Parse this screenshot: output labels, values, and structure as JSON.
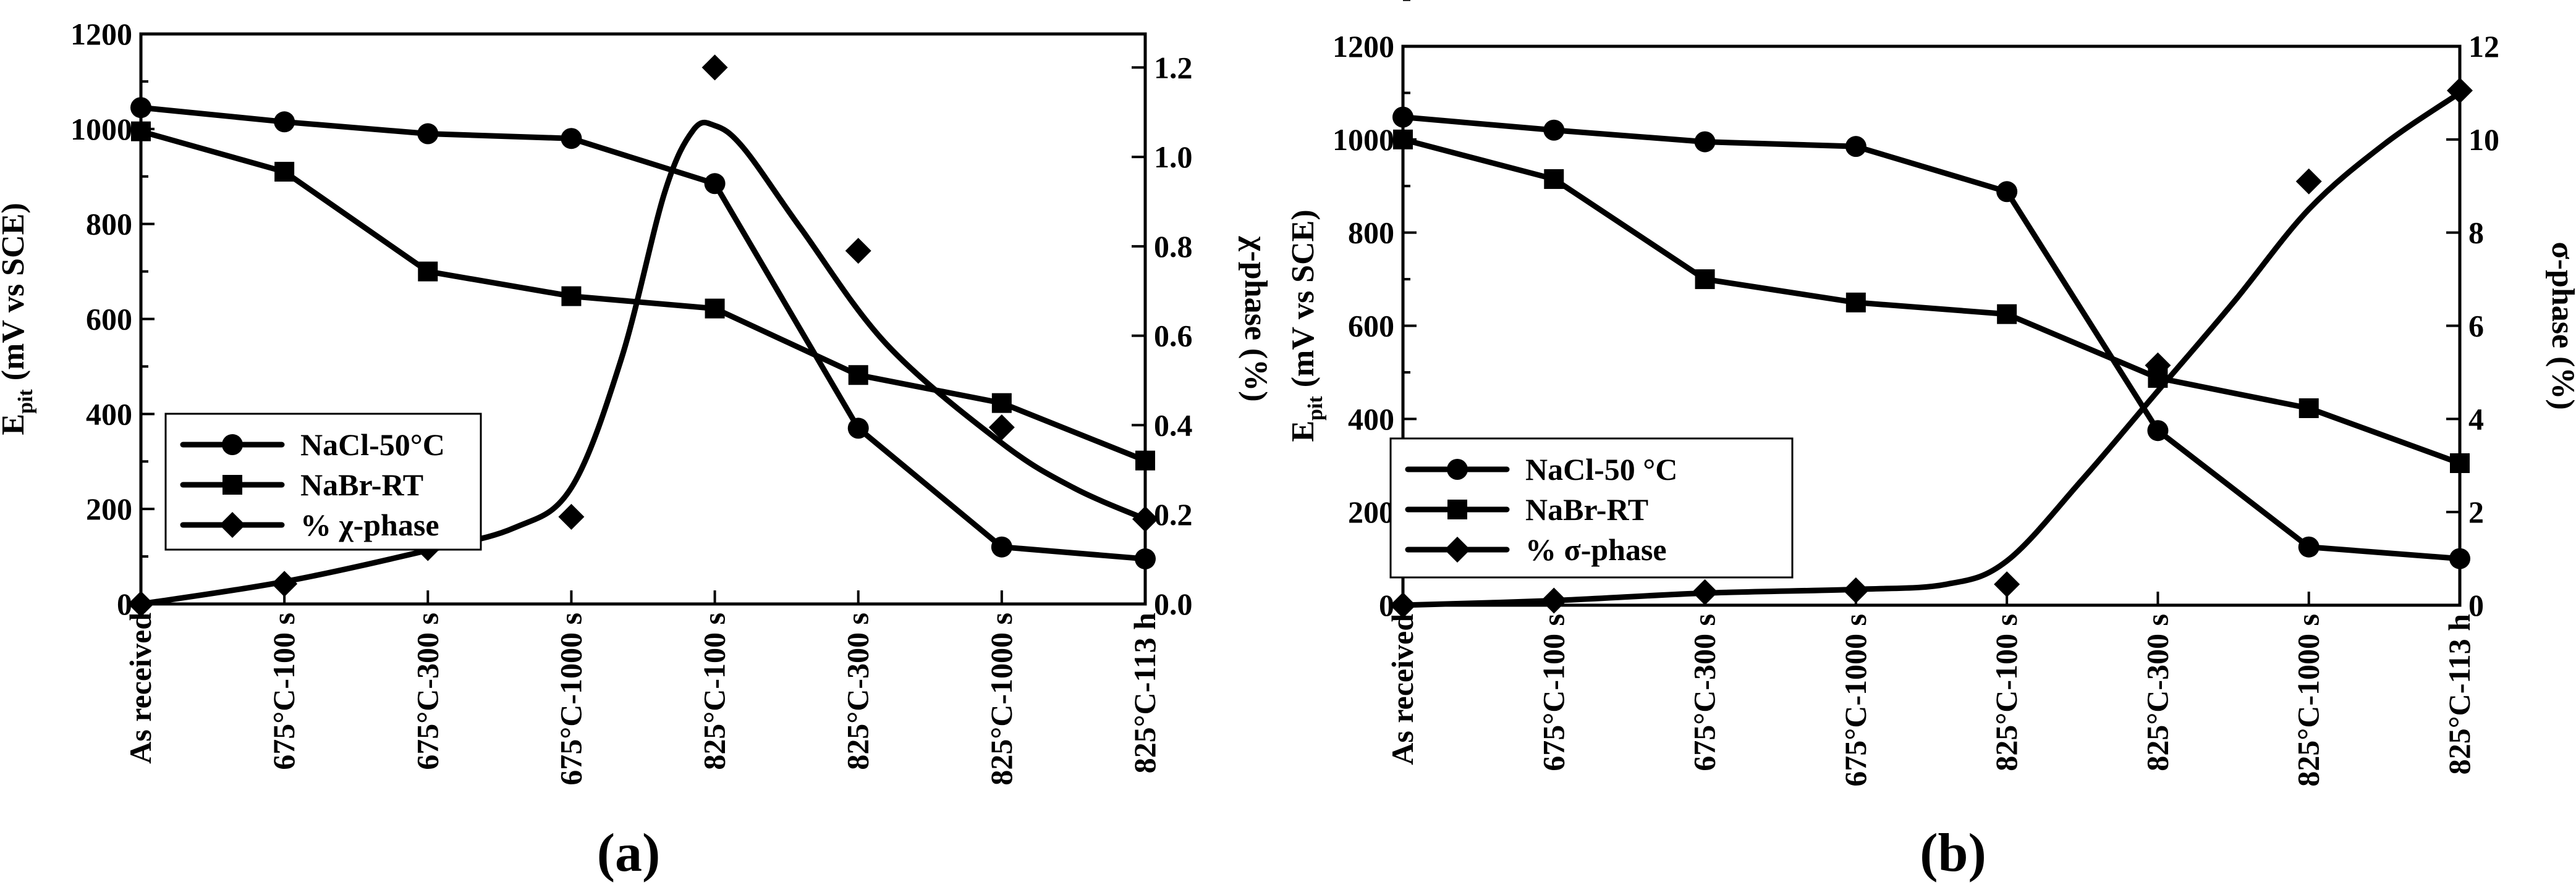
{
  "chart_data": [
    {
      "panel_label": "(a)",
      "type": "line",
      "categories": [
        "As received",
        "675°C-100 s",
        "675°C-300 s",
        "675°C-1000 s",
        "825°C-100 s",
        "825°C-300 s",
        "825°C-1000 s",
        "825°C-113 h"
      ],
      "ylabel_main": "E",
      "ylabel_sub": "pit",
      "ylabel_rest": "(mV vs SCE)",
      "y2label": "χ-phase (%)",
      "ylim": [
        0,
        1200
      ],
      "y_ticks": [
        "0",
        "200",
        "400",
        "600",
        "800",
        "1000",
        "1200"
      ],
      "y2lim": [
        0,
        1.275
      ],
      "y2_ticks": [
        "0.0",
        "0.2",
        "0.4",
        "0.6",
        "0.8",
        "1.0",
        "1.2"
      ],
      "series": [
        {
          "name": "NaCl-50°C",
          "axis": "left",
          "marker": "circle",
          "values": [
            1045,
            1015,
            990,
            980,
            885,
            370,
            120,
            95
          ]
        },
        {
          "name": "NaBr-RT",
          "axis": "left",
          "marker": "square",
          "values": [
            995,
            910,
            700,
            648,
            622,
            482,
            423,
            302
          ]
        },
        {
          "name": "% χ-phase",
          "axis": "right",
          "marker": "diamond",
          "values": [
            0.0,
            0.045,
            0.125,
            0.195,
            1.2,
            0.79,
            0.395,
            0.19
          ]
        }
      ],
      "chi_fit_curve": [
        [
          0,
          0.0
        ],
        [
          1,
          0.05
        ],
        [
          2,
          0.12
        ],
        [
          2.6,
          0.17
        ],
        [
          3,
          0.26
        ],
        [
          3.35,
          0.55
        ],
        [
          3.65,
          0.92
        ],
        [
          3.85,
          1.06
        ],
        [
          4.0,
          1.07
        ],
        [
          4.2,
          1.02
        ],
        [
          4.6,
          0.84
        ],
        [
          5.2,
          0.58
        ],
        [
          6.0,
          0.36
        ],
        [
          6.5,
          0.26
        ],
        [
          7,
          0.19
        ]
      ],
      "legend_position": "middle-left"
    },
    {
      "panel_label": "(b)",
      "type": "line",
      "categories": [
        "As received",
        "675°C-100 s",
        "675°C-300 s",
        "675°C-1000 s",
        "825°C-100 s",
        "825°C-300 s",
        "825°C-1000 s",
        "825°C-113 h"
      ],
      "ylabel_main": "E",
      "ylabel_sub": "pit",
      "ylabel_rest": "(mV vs SCE)",
      "y2label": "σ-phase (%)",
      "ylim": [
        0,
        1200
      ],
      "y_ticks": [
        "0",
        "200",
        "400",
        "600",
        "800",
        "1000",
        "1200"
      ],
      "y2lim": [
        0,
        12
      ],
      "y2_ticks": [
        "0",
        "2",
        "4",
        "6",
        "8",
        "10",
        "12"
      ],
      "series": [
        {
          "name": "NaCl-50 °C",
          "axis": "left",
          "marker": "circle",
          "values": [
            1048,
            1020,
            995,
            985,
            888,
            375,
            125,
            100
          ]
        },
        {
          "name": "NaBr-RT",
          "axis": "left",
          "marker": "square",
          "values": [
            1000,
            915,
            700,
            650,
            625,
            488,
            423,
            305
          ]
        },
        {
          "name": "% σ-phase",
          "axis": "right",
          "marker": "diamond",
          "values": [
            0,
            0.1,
            0.28,
            0.32,
            0.45,
            5.15,
            9.1,
            11.05
          ]
        }
      ],
      "sigma_fit_curve": [
        [
          0,
          0.0
        ],
        [
          1,
          0.1
        ],
        [
          2,
          0.26
        ],
        [
          3,
          0.34
        ],
        [
          3.6,
          0.45
        ],
        [
          4,
          0.95
        ],
        [
          4.5,
          2.7
        ],
        [
          5,
          4.6
        ],
        [
          5.5,
          6.5
        ],
        [
          6,
          8.5
        ],
        [
          6.5,
          9.9
        ],
        [
          7,
          11.0
        ]
      ],
      "legend_position": "middle-left"
    }
  ]
}
